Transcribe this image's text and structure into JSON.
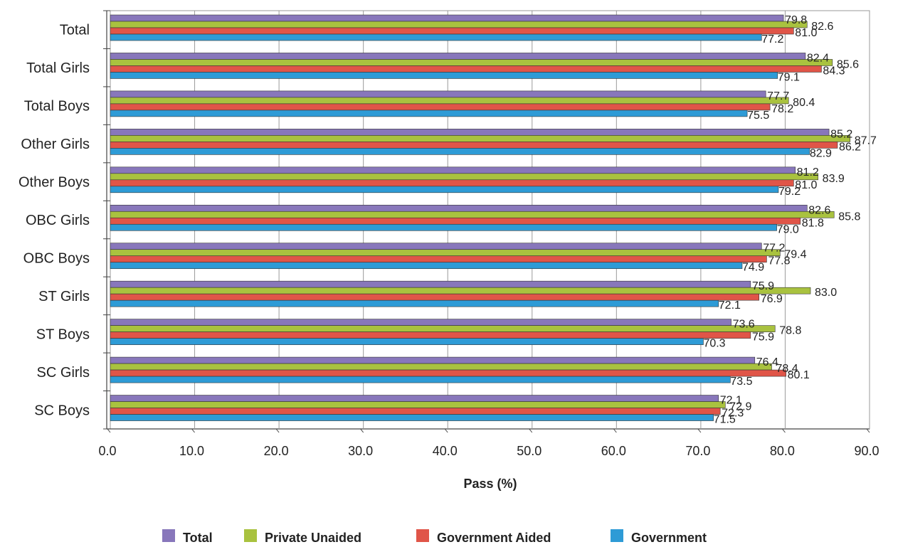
{
  "chart_data": {
    "type": "bar",
    "orientation": "horizontal",
    "categories": [
      "Total",
      "Total Girls",
      "Total Boys",
      "Other Girls",
      "Other Boys",
      "OBC Girls",
      "OBC Boys",
      "ST Girls",
      "ST Boys",
      "SC Girls",
      "SC Boys"
    ],
    "series": [
      {
        "name": "Total",
        "color": "#8877bb",
        "values": [
          79.8,
          82.4,
          77.7,
          85.2,
          81.2,
          82.6,
          77.2,
          75.9,
          73.6,
          76.4,
          72.1
        ]
      },
      {
        "name": "Private Unaided",
        "color": "#a9c23f",
        "values": [
          82.6,
          85.6,
          80.4,
          87.7,
          83.9,
          85.8,
          79.4,
          83.0,
          78.8,
          78.4,
          72.9
        ]
      },
      {
        "name": "Government Aided",
        "color": "#e05548",
        "values": [
          81.0,
          84.3,
          78.2,
          86.2,
          81.0,
          81.8,
          77.8,
          76.9,
          75.9,
          80.1,
          72.3
        ]
      },
      {
        "name": "Government",
        "color": "#2e9bd6",
        "values": [
          77.2,
          79.1,
          75.5,
          82.9,
          79.2,
          79.0,
          74.9,
          72.1,
          70.3,
          73.5,
          71.5
        ]
      }
    ],
    "xlabel": "Pass (%)",
    "ylabel": "",
    "xlim": [
      0,
      90
    ],
    "xticks": [
      "0.0",
      "10.0",
      "20.0",
      "30.0",
      "40.0",
      "50.0",
      "60.0",
      "70.0",
      "80.0",
      "90.0"
    ],
    "grid": true,
    "legend_position": "bottom"
  }
}
